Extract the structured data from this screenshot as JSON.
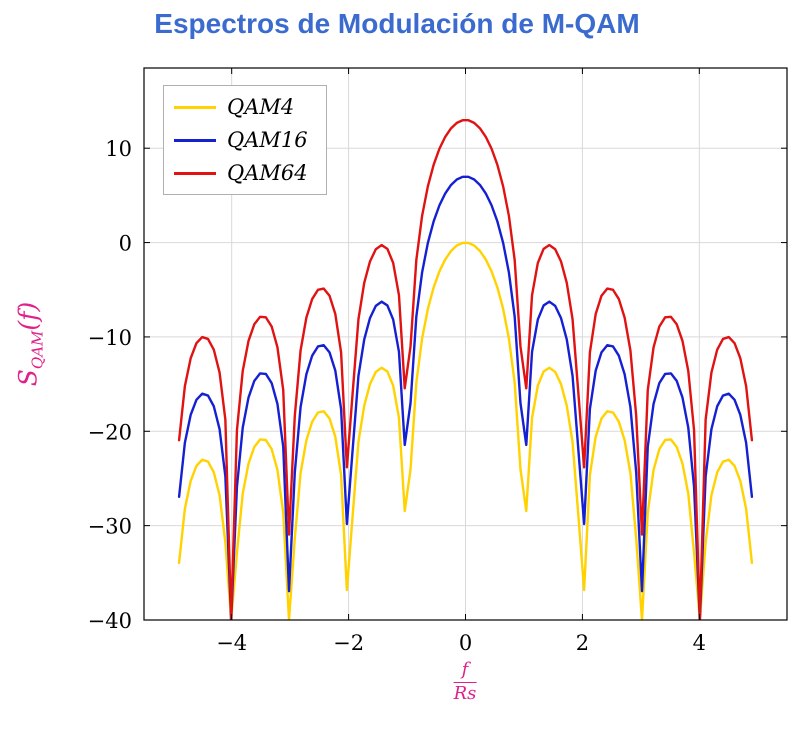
{
  "title": "Espectros de Modulación de M-QAM",
  "colors": {
    "title": "#3b6bce",
    "axis_label": "#e0218a",
    "grid": "#d9d9d9",
    "frame": "#000000",
    "legend_border": "#b0b0b0"
  },
  "ylabel": {
    "base": "S",
    "sub": "QAM",
    "suffix": "(f)"
  },
  "xlabel": {
    "num": "f",
    "den": "Rs"
  },
  "chart_data": {
    "type": "line",
    "title": "Espectros de Modulación de M-QAM",
    "xlabel": "f/Rs",
    "ylabel": "S_QAM(f)",
    "xlim": [
      -5.5,
      5.5
    ],
    "ylim": [
      -40,
      18.5
    ],
    "xticks": [
      -4,
      -2,
      0,
      2,
      4
    ],
    "xtick_labels": [
      "−4",
      "−2",
      "0",
      "2",
      "4"
    ],
    "yticks": [
      10,
      0,
      -10,
      -20,
      -30,
      -40
    ],
    "ytick_labels": [
      "10",
      "0",
      "−10",
      "−20",
      "−30",
      "−40"
    ],
    "grid": true,
    "legend_position": "top-left",
    "x_range": [
      -4.9,
      4.9
    ],
    "samples": 100,
    "formula": "y_dB = offset_db + 10*log10(sinc^2(f/Rs))",
    "clip_min_db": -40,
    "series": [
      {
        "name": "QAM4",
        "color": "#ffd200",
        "offset_db": 0,
        "peak_db": 0
      },
      {
        "name": "QAM16",
        "color": "#1420d2",
        "offset_db": 7,
        "peak_db": 7
      },
      {
        "name": "QAM64",
        "color": "#e01212",
        "offset_db": 13,
        "peak_db": 13
      }
    ],
    "nulls_at": [
      -4,
      -3,
      -2,
      -1,
      1,
      2,
      3,
      4
    ],
    "sidelobe_levels_db_rel_peak": [
      -13.3,
      -17.8,
      -20.8,
      -23.0
    ]
  }
}
